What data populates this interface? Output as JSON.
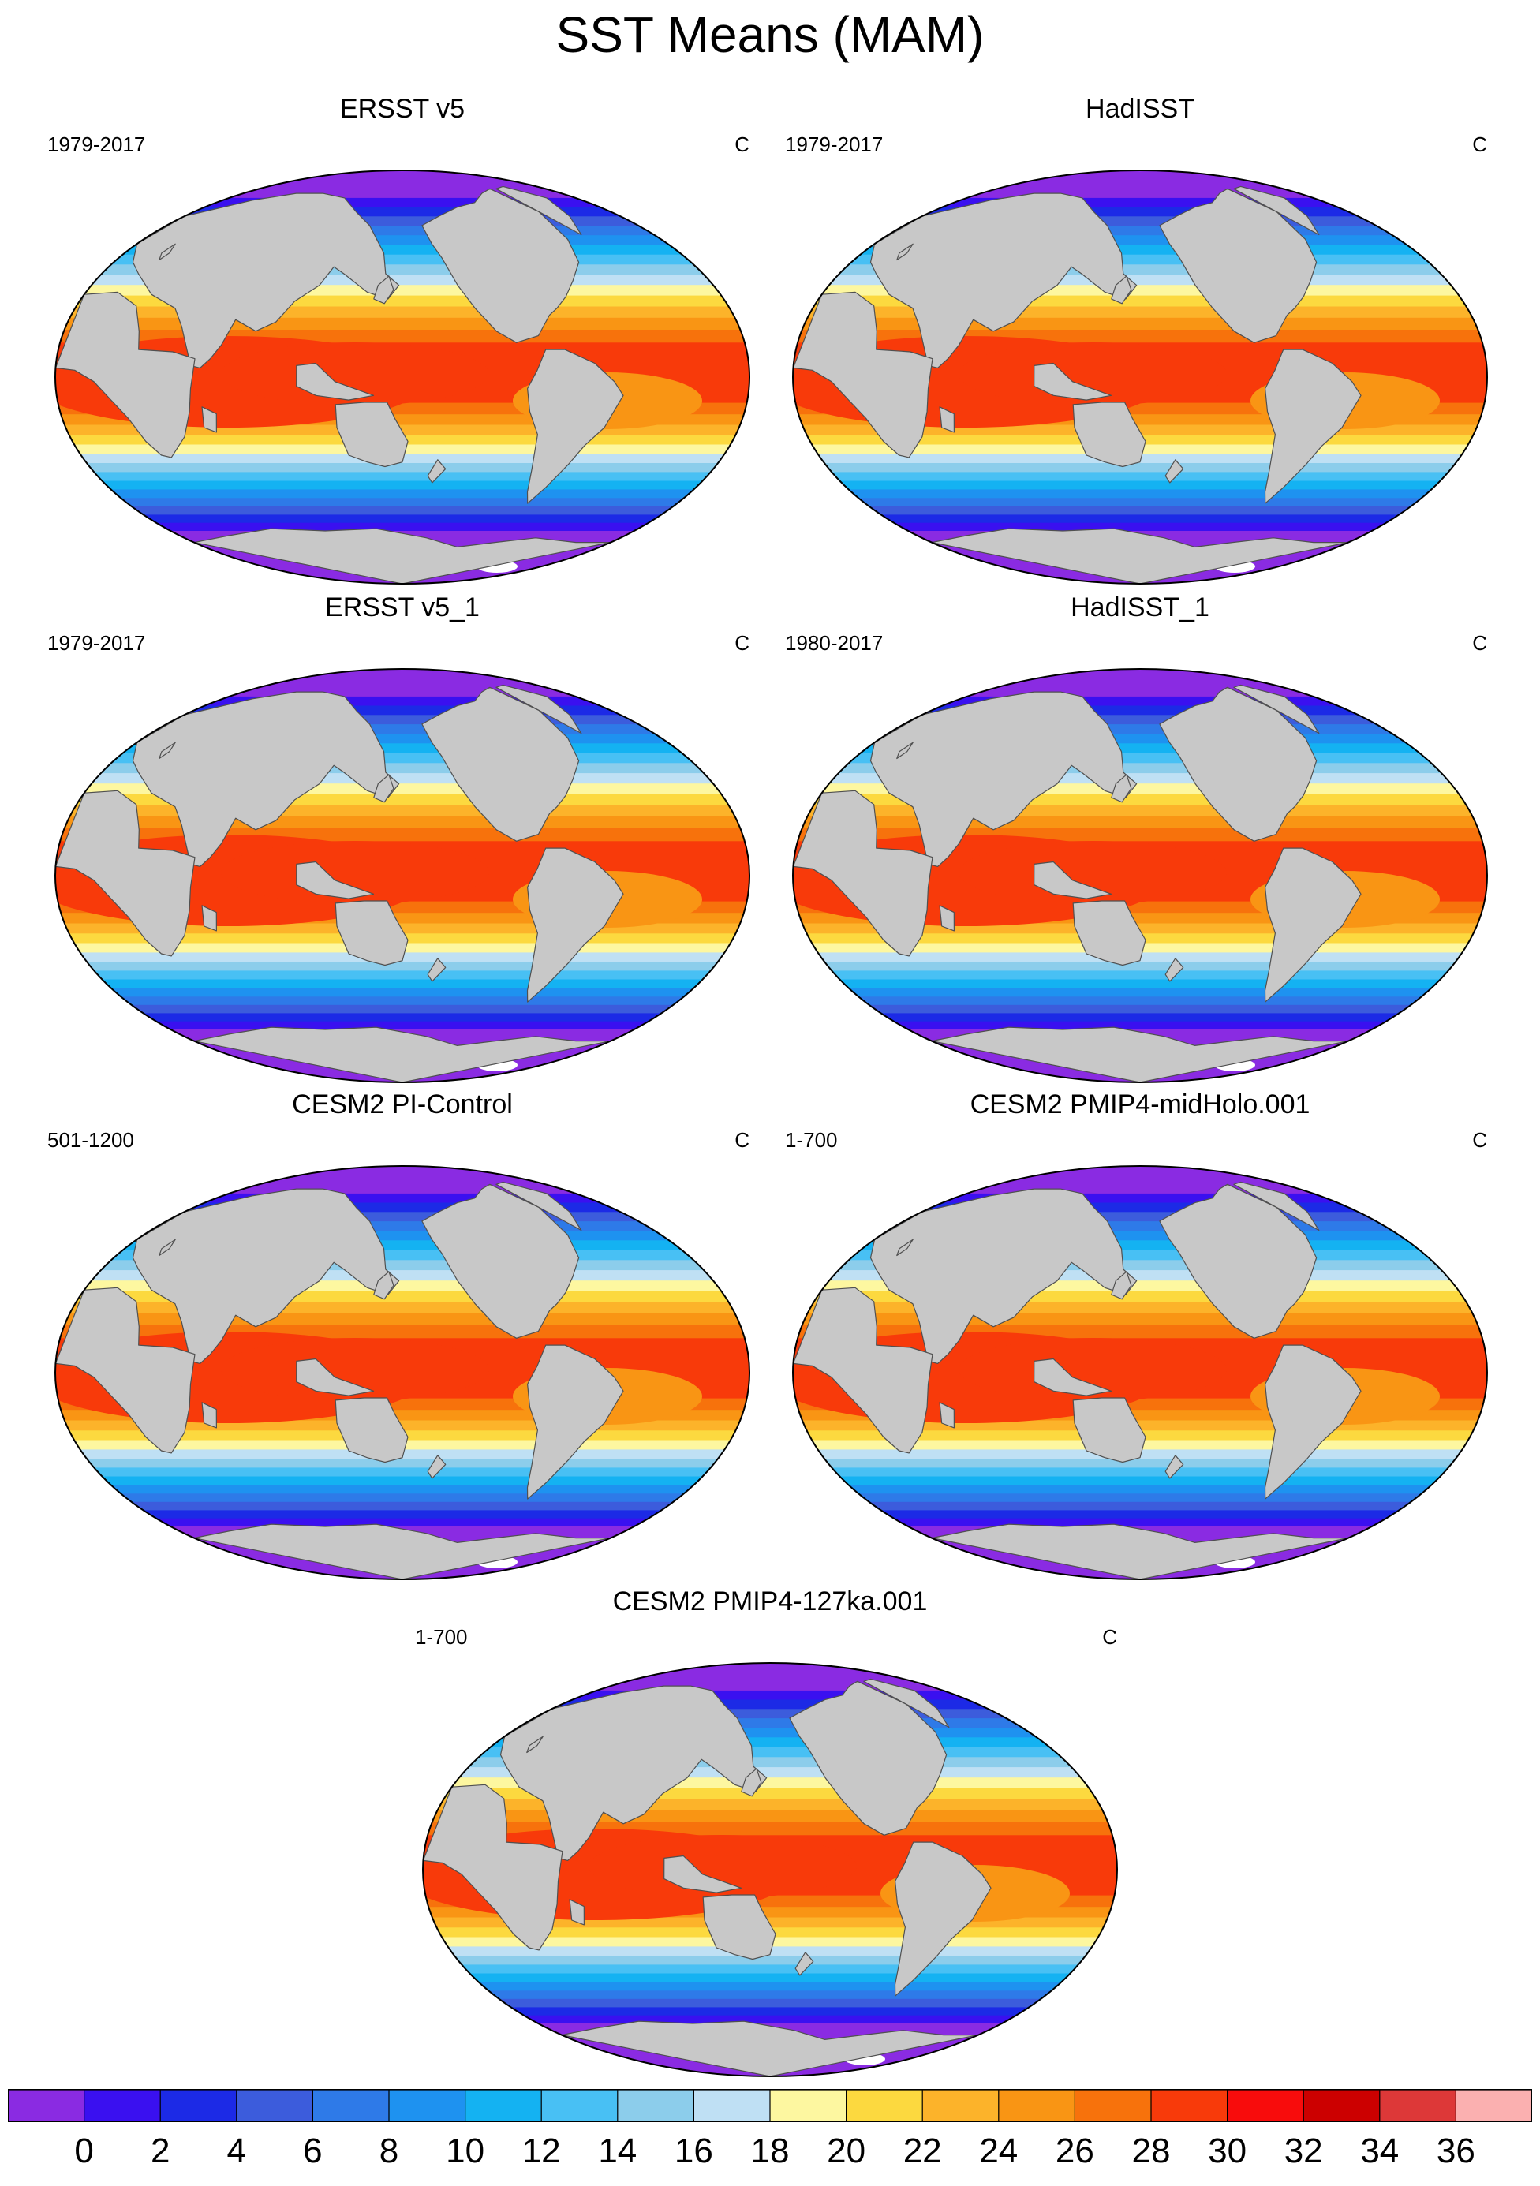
{
  "title": "SST Means (MAM)",
  "panels": [
    {
      "name": "ERSST v5",
      "period": "1979-2017",
      "units": "C"
    },
    {
      "name": "HadISST",
      "period": "1979-2017",
      "units": "C"
    },
    {
      "name": "ERSST v5_1",
      "period": "1979-2017",
      "units": "C"
    },
    {
      "name": "HadISST_1",
      "period": "1980-2017",
      "units": "C"
    },
    {
      "name": "CESM2 PI-Control",
      "period": "501-1200",
      "units": "C"
    },
    {
      "name": "CESM2 PMIP4-midHolo.001",
      "period": "1-700",
      "units": "C"
    },
    {
      "name": "CESM2 PMIP4-127ka.001",
      "period": "1-700",
      "units": "C"
    }
  ],
  "colorbar": {
    "labels": [
      "0",
      "2",
      "4",
      "6",
      "8",
      "10",
      "12",
      "14",
      "16",
      "18",
      "20",
      "22",
      "24",
      "26",
      "28",
      "30",
      "32",
      "34",
      "36"
    ],
    "colors": [
      "#8a2be2",
      "#3a10f0",
      "#1c2ae6",
      "#3c5cdc",
      "#2e7ae8",
      "#1e92f0",
      "#14b2f2",
      "#48c0f4",
      "#8ccdeb",
      "#bfe0f4",
      "#fdf7a0",
      "#fcd93f",
      "#fcb32a",
      "#f99514",
      "#f7720c",
      "#f83a0a",
      "#f80c0c",
      "#cc0000",
      "#dd3838",
      "#fbb0b0"
    ]
  },
  "map_style": {
    "land": "#c8c8c8",
    "coast": "#505050",
    "ocean_blank": "#ffffff"
  }
}
